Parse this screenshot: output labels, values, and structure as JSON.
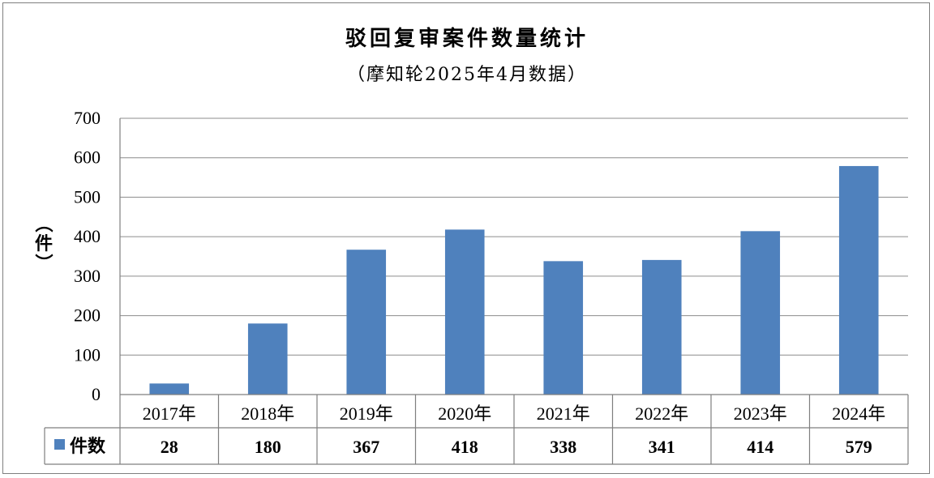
{
  "chart_data": {
    "type": "bar",
    "title": "驳回复审案件数量统计",
    "subtitle": "（摩知轮2025年4月数据）",
    "ylabel": "（件）",
    "xlabel": "",
    "categories": [
      "2017年",
      "2018年",
      "2019年",
      "2020年",
      "2021年",
      "2022年",
      "2023年",
      "2024年"
    ],
    "series": [
      {
        "name": "件数",
        "values": [
          28,
          180,
          367,
          418,
          338,
          341,
          414,
          579
        ],
        "color": "#4f81bd"
      }
    ],
    "ylim": [
      0,
      700
    ],
    "yticks": [
      "0",
      "100",
      "200",
      "300",
      "400",
      "500",
      "600",
      "700"
    ],
    "grid": true,
    "legend": "data-table-left",
    "data_table": true
  }
}
